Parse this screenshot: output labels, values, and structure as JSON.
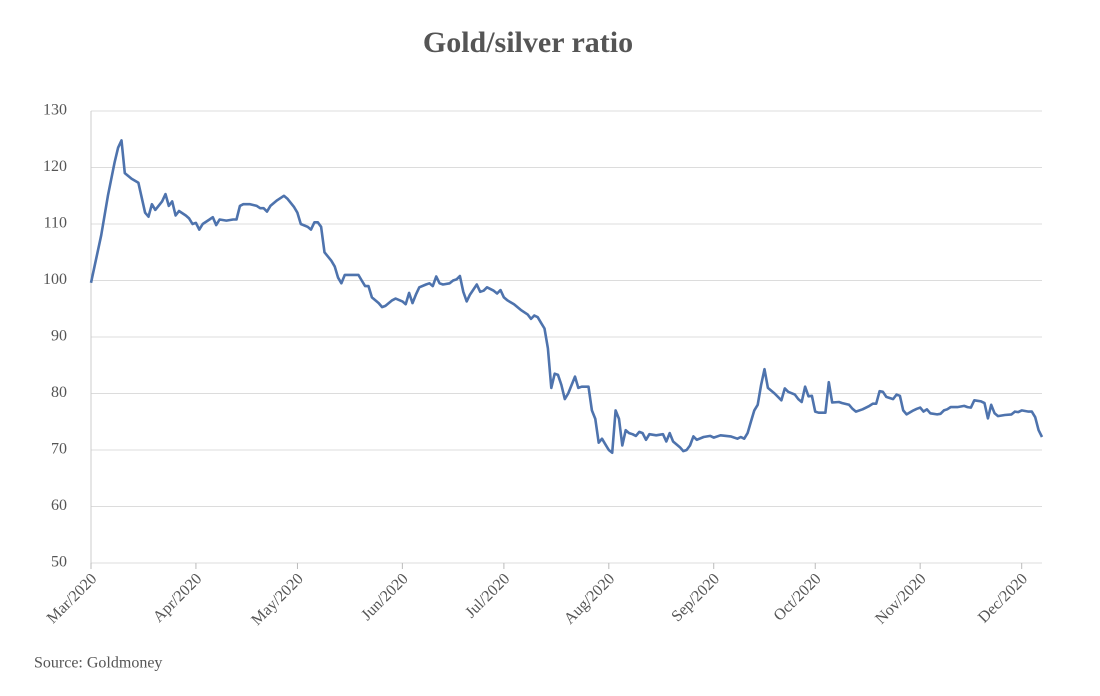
{
  "chart_data": {
    "type": "line",
    "title": "Gold/silver ratio",
    "source": "Source: Goldmoney",
    "x": [
      0,
      3,
      5,
      7,
      8,
      9,
      10,
      12,
      14,
      16,
      17,
      18,
      19,
      21,
      22,
      23,
      24,
      25,
      26,
      28,
      29,
      30,
      31,
      32,
      33,
      35,
      36,
      37,
      38,
      40,
      42,
      43,
      44,
      45,
      47,
      49,
      50,
      51,
      52,
      53,
      55,
      57,
      58,
      60,
      61,
      62,
      64,
      65,
      66,
      67,
      68,
      69,
      71,
      72,
      73,
      74,
      75,
      77,
      79,
      80,
      81,
      82,
      83,
      85,
      86,
      87,
      89,
      90,
      92,
      93,
      94,
      95,
      96,
      97,
      99,
      100,
      101,
      102,
      103,
      104,
      106,
      107,
      108,
      109,
      110,
      111,
      112,
      114,
      115,
      116,
      117,
      119,
      120,
      121,
      122,
      123,
      125,
      127,
      129,
      130,
      131,
      132,
      133,
      134,
      135,
      136,
      137,
      138,
      139,
      140,
      141,
      142,
      143,
      144,
      145,
      147,
      148,
      149,
      150,
      151,
      152,
      153,
      154,
      155,
      156,
      157,
      158,
      159,
      160,
      161,
      162,
      163,
      164,
      165,
      167,
      169,
      170,
      171,
      172,
      173,
      174,
      175,
      176,
      177,
      178,
      179,
      181,
      183,
      184,
      186,
      189,
      191,
      192,
      193,
      194,
      195,
      196,
      197,
      198,
      199,
      200,
      202,
      204,
      205,
      206,
      208,
      209,
      210,
      211,
      212,
      213,
      214,
      215,
      217,
      218,
      219,
      221,
      222,
      224,
      225,
      226,
      228,
      230,
      231,
      232,
      233,
      234,
      235,
      237,
      238,
      239,
      240,
      241,
      243,
      244,
      245,
      246,
      247,
      248,
      250,
      251,
      252,
      253,
      254,
      256,
      258,
      259,
      260,
      261,
      263,
      264,
      265,
      266,
      267,
      268,
      270,
      272,
      273,
      274,
      275,
      277,
      278,
      279,
      280,
      281
    ],
    "values": [
      99.6,
      108,
      115,
      121,
      123.5,
      124.8,
      119,
      118,
      117.3,
      112,
      111.3,
      113.5,
      112.5,
      114,
      115.3,
      113.2,
      114,
      111.5,
      112.3,
      111.5,
      111,
      110,
      110.2,
      109,
      110,
      110.8,
      111.2,
      109.8,
      110.8,
      110.6,
      110.8,
      110.8,
      113.2,
      113.5,
      113.5,
      113.2,
      112.8,
      112.8,
      112.2,
      113.2,
      114.2,
      115,
      114.5,
      113,
      112,
      110,
      109.5,
      109,
      110.3,
      110.3,
      109.5,
      105,
      103.5,
      102.5,
      100.5,
      99.5,
      101,
      101,
      101,
      100,
      99,
      99,
      97,
      96,
      95.3,
      95.5,
      96.5,
      96.8,
      96.3,
      95.8,
      97.8,
      96,
      97.5,
      98.8,
      99.3,
      99.5,
      99,
      100.7,
      99.5,
      99.3,
      99.5,
      100,
      100.2,
      100.8,
      98,
      96.3,
      97.5,
      99.3,
      98,
      98.2,
      98.8,
      98.2,
      97.7,
      98.3,
      97,
      96.5,
      95.8,
      94.8,
      94,
      93.2,
      93.8,
      93.5,
      92.5,
      91.5,
      88,
      81,
      83.5,
      83.3,
      81.5,
      79,
      80,
      81.5,
      83,
      81,
      81.2,
      81.2,
      77,
      75.5,
      71.3,
      72,
      71,
      70,
      69.5,
      77,
      75.5,
      70.8,
      73.5,
      73,
      72.8,
      72.5,
      73.2,
      73,
      71.8,
      72.8,
      72.6,
      72.8,
      71.5,
      73,
      71.5,
      71,
      70.5,
      69.8,
      70,
      70.8,
      72.4,
      71.8,
      72.3,
      72.5,
      72.2,
      72.6,
      72.4,
      72,
      72.3,
      72,
      73,
      75,
      77,
      78,
      81.5,
      84.3,
      81,
      80,
      78.8,
      80.9,
      80.3,
      79.8,
      79,
      78.5,
      81.2,
      79.5,
      79.6,
      76.8,
      76.6,
      76.6,
      82,
      78.4,
      78.5,
      78.3,
      78,
      77.3,
      76.8,
      77.2,
      77.8,
      78.2,
      78.2,
      80.4,
      80.3,
      79.4,
      79,
      79.8,
      79.6,
      77,
      76.3,
      77,
      77.3,
      77.5,
      76.8,
      77.2,
      76.5,
      76.3,
      76.4,
      77,
      77.2,
      77.6,
      77.6,
      77.8,
      77.6,
      77.5,
      78.8,
      78.6,
      78.3,
      75.6,
      78,
      76.5,
      76,
      76.2,
      76.3,
      76.8,
      76.7,
      77,
      76.8,
      76.8,
      75.8,
      73.5,
      72.3
    ],
    "color": "#4e73ad",
    "xlim": [
      0,
      281
    ],
    "xticks": [
      {
        "value": 0,
        "label": "Mar/2020"
      },
      {
        "value": 31,
        "label": "Apr/2020"
      },
      {
        "value": 61,
        "label": "May/2020"
      },
      {
        "value": 92,
        "label": "Jun/2020"
      },
      {
        "value": 122,
        "label": "Jul/2020"
      },
      {
        "value": 153,
        "label": "Aug/2020"
      },
      {
        "value": 184,
        "label": "Sep/2020"
      },
      {
        "value": 214,
        "label": "Oct/2020"
      },
      {
        "value": 245,
        "label": "Nov/2020"
      },
      {
        "value": 275,
        "label": "Dec/2020"
      }
    ],
    "ylim": [
      50,
      130
    ],
    "yticks": [
      50,
      60,
      70,
      80,
      90,
      100,
      110,
      120,
      130
    ],
    "grid": true
  }
}
